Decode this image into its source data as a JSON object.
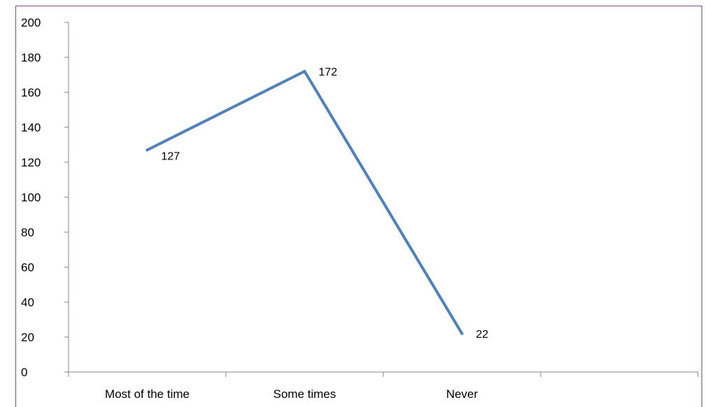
{
  "chart_data": {
    "type": "line",
    "categories": [
      "Most of the time",
      "Some times",
      "Never"
    ],
    "series": [
      {
        "values": [
          127,
          172,
          22
        ],
        "color": "#4f81bd"
      }
    ],
    "data_labels": [
      "127",
      "172",
      "22"
    ],
    "ylim": [
      0,
      200
    ],
    "y_ticks": [
      "0",
      "20",
      "40",
      "60",
      "80",
      "100",
      "120",
      "140",
      "160",
      "180",
      "200"
    ],
    "grid": false,
    "legend": "none"
  }
}
